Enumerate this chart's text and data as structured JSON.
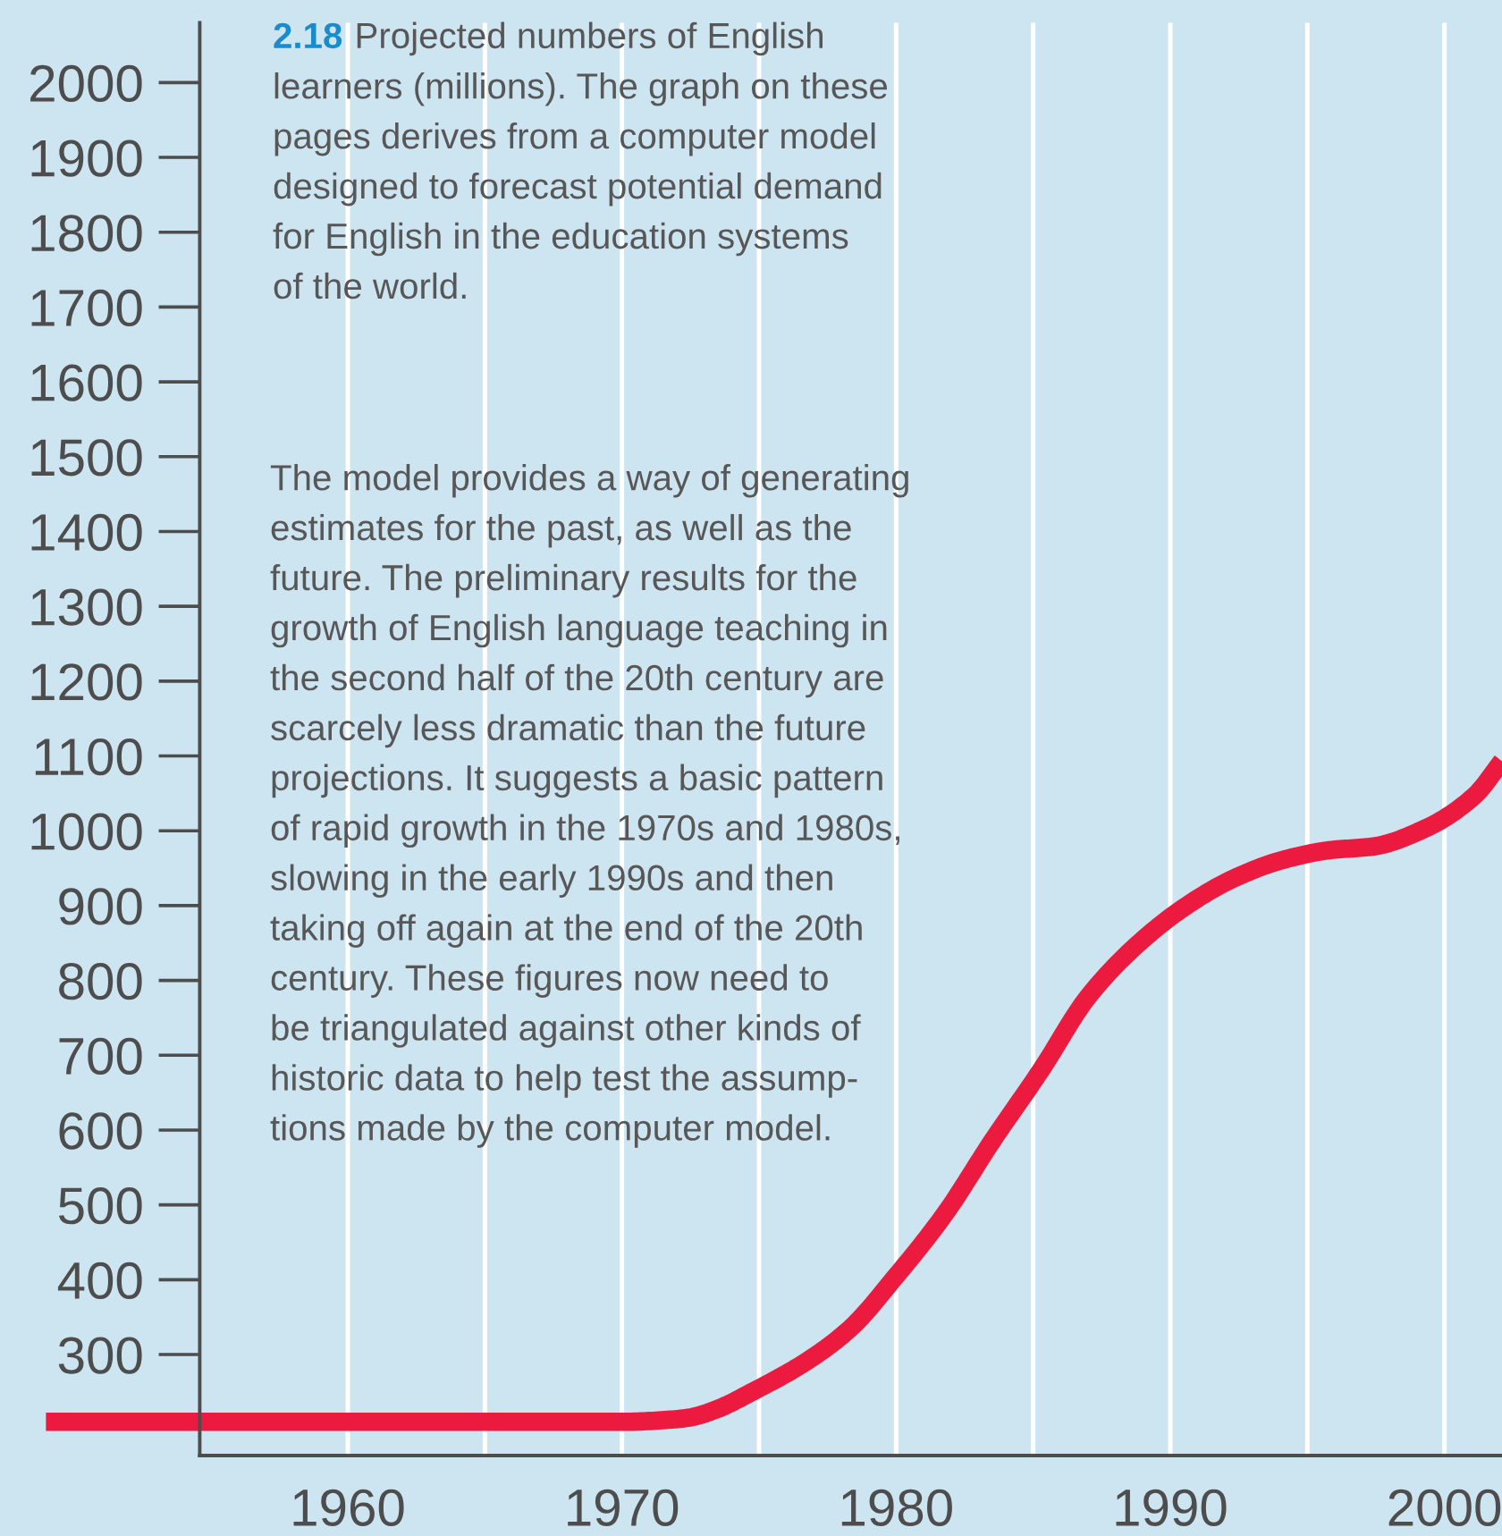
{
  "chart_data": {
    "type": "line",
    "title": "2.18 Projected numbers of English\nlearners (millions). The graph on these\npages derives from a computer model\ndesigned to forecast potential demand\nfor English in the education systems\nof the world.",
    "annotations": [
      "The model provides a way of generating\nestimates for the past, as well as the\nfuture. The preliminary results for the\ngrowth of English language teaching in\nthe second half of the 20th century are\nscarcely less dramatic than the future\nprojections. It suggests a basic pattern\nof rapid growth in the 1970s and 1980s,\nslowing in the early 1990s and then\ntaking off again at the end of the 20th\ncentury. These figures now need to\nbe triangulated against other kinds of\nhistoric data to help test the assump-\ntions made by the computer model."
    ],
    "x": [
      1954.6,
      1960,
      1965,
      1970,
      1971.8,
      1972.5,
      1973.4,
      1974.8,
      1976.7,
      1978.3,
      1980.0,
      1981.8,
      1983.5,
      1985.3,
      1987.0,
      1988.8,
      1990.6,
      1992.3,
      1994.1,
      1995.8,
      1997.4,
      1999.3,
      2001.1,
      2002.1
    ],
    "series": [
      {
        "color": "#ec1a3f",
        "values": [
          210,
          210,
          210,
          210,
          213,
          216,
          226,
          251,
          290,
          334,
          405,
          489,
          585,
          681,
          778,
          848,
          900,
          936,
          961,
          974,
          979,
          1003,
          1047,
          1093
        ]
      }
    ],
    "xlim": [
      1954.6,
      2002.1
    ],
    "ylim": [
      165,
      2080
    ],
    "xticks": [
      1960,
      {
        "value": 1965,
        "label": null
      },
      1970,
      {
        "value": 1975,
        "label": null
      },
      1980,
      {
        "value": 1985,
        "label": null
      },
      1990,
      {
        "value": 1995,
        "label": null
      },
      2000
    ],
    "yticks": [
      300,
      400,
      500,
      600,
      700,
      800,
      900,
      1000,
      1100,
      1200,
      1300,
      1400,
      1500,
      1600,
      1700,
      1800,
      1900,
      2000
    ],
    "grid": "x",
    "line_style": "solid"
  }
}
